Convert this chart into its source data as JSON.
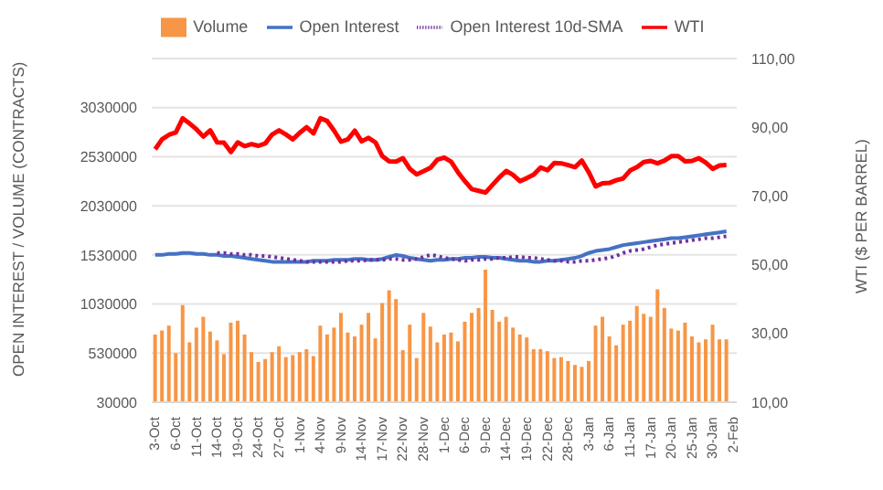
{
  "chart_data": {
    "type": "bar",
    "ylabel": "OPEN INTEREST / VOLUME (CONTRACTS)",
    "y2label": "WTI ($ PER BARREL)",
    "categories": [
      "3-Oct",
      null,
      null,
      "6-Oct",
      null,
      null,
      "11-Oct",
      null,
      null,
      "14-Oct",
      null,
      null,
      "19-Oct",
      null,
      null,
      "24-Oct",
      null,
      null,
      "27-Oct",
      null,
      null,
      "1-Nov",
      null,
      null,
      "4-Nov",
      null,
      null,
      "9-Nov",
      null,
      null,
      "14-Nov",
      null,
      null,
      "17-Nov",
      null,
      null,
      "22-Nov",
      null,
      null,
      "28-Nov",
      null,
      null,
      "1-Dec",
      null,
      null,
      "6-Dec",
      null,
      null,
      "9-Dec",
      null,
      null,
      "14-Dec",
      null,
      null,
      "19-Dec",
      null,
      null,
      "22-Dec",
      null,
      null,
      "28-Dec",
      null,
      null,
      "3-Jan",
      null,
      null,
      "6-Jan",
      null,
      null,
      "11-Jan",
      null,
      null,
      "17-Jan",
      null,
      null,
      "20-Jan",
      null,
      null,
      "25-Jan",
      null,
      null,
      "30-Jan",
      null,
      null,
      "2-Feb"
    ],
    "series": [
      {
        "name": "Volume",
        "color": "#f79646",
        "values": [
          720000,
          760000,
          810000,
          530000,
          1020000,
          640000,
          790000,
          900000,
          750000,
          660000,
          520000,
          840000,
          860000,
          720000,
          540000,
          440000,
          470000,
          540000,
          600000,
          490000,
          510000,
          540000,
          570000,
          500000,
          810000,
          720000,
          790000,
          940000,
          740000,
          700000,
          820000,
          940000,
          680000,
          1040000,
          1170000,
          1080000,
          560000,
          820000,
          480000,
          940000,
          800000,
          640000,
          720000,
          740000,
          650000,
          850000,
          940000,
          990000,
          1380000,
          970000,
          850000,
          900000,
          790000,
          720000,
          690000,
          570000,
          570000,
          550000,
          480000,
          490000,
          450000,
          410000,
          390000,
          450000,
          810000,
          900000,
          700000,
          610000,
          820000,
          860000,
          1010000,
          930000,
          900000,
          1180000,
          990000,
          780000,
          760000,
          840000,
          700000,
          640000,
          670000,
          820000,
          670000,
          670000,
          null
        ]
      },
      {
        "name": "Open Interest",
        "type": "line",
        "color": "#4472c4",
        "line_style": "solid",
        "values": [
          1530000,
          1530000,
          1540000,
          1540000,
          1550000,
          1550000,
          1540000,
          1540000,
          1530000,
          1530000,
          1520000,
          1520000,
          1510000,
          1500000,
          1490000,
          1480000,
          1470000,
          1460000,
          1460000,
          1460000,
          1460000,
          1460000,
          1460000,
          1470000,
          1470000,
          1470000,
          1480000,
          1480000,
          1480000,
          1490000,
          1490000,
          1480000,
          1480000,
          1490000,
          1510000,
          1530000,
          1520000,
          1500000,
          1490000,
          1480000,
          1470000,
          1480000,
          1480000,
          1490000,
          1490000,
          1500000,
          1500000,
          1510000,
          1510000,
          1500000,
          1500000,
          1490000,
          1480000,
          1470000,
          1470000,
          1460000,
          1460000,
          1470000,
          1470000,
          1480000,
          1490000,
          1500000,
          1520000,
          1550000,
          1570000,
          1580000,
          1590000,
          1610000,
          1630000,
          1640000,
          1650000,
          1660000,
          1670000,
          1680000,
          1690000,
          1700000,
          1700000,
          1710000,
          1720000,
          1730000,
          1740000,
          1750000,
          1760000,
          1770000,
          null
        ]
      },
      {
        "name": "Open Interest 10d-SMA",
        "type": "line",
        "color": "#7030a0",
        "line_style": "dotted",
        "values": [
          null,
          null,
          null,
          null,
          null,
          null,
          null,
          null,
          null,
          1550000,
          1550000,
          1540000,
          1540000,
          1530000,
          1530000,
          1520000,
          1520000,
          1510000,
          1500000,
          1490000,
          1480000,
          1470000,
          1460000,
          1460000,
          1460000,
          1460000,
          1460000,
          1460000,
          1470000,
          1470000,
          1470000,
          1480000,
          1480000,
          1480000,
          1490000,
          1490000,
          1480000,
          1480000,
          1490000,
          1510000,
          1530000,
          1520000,
          1500000,
          1490000,
          1480000,
          1470000,
          1480000,
          1480000,
          1490000,
          1490000,
          1500000,
          1500000,
          1510000,
          1510000,
          1500000,
          1500000,
          1490000,
          1480000,
          1470000,
          1470000,
          1460000,
          1460000,
          1470000,
          1470000,
          1480000,
          1490000,
          1500000,
          1520000,
          1550000,
          1570000,
          1580000,
          1590000,
          1610000,
          1630000,
          1640000,
          1650000,
          1660000,
          1670000,
          1680000,
          1690000,
          1700000,
          1700000,
          1710000,
          1720000,
          null
        ]
      },
      {
        "name": "WTI",
        "type": "line",
        "axis": "y2",
        "color": "#ff0000",
        "line_style": "solid",
        "values": [
          83.6,
          86.5,
          87.8,
          88.5,
          92.6,
          91.1,
          89.4,
          87.3,
          89.1,
          85.6,
          85.5,
          82.8,
          85.6,
          84.5,
          85.1,
          84.6,
          85.3,
          87.9,
          89.1,
          87.9,
          86.5,
          88.4,
          90.0,
          88.2,
          92.6,
          91.8,
          89.0,
          85.8,
          86.5,
          89.0,
          85.9,
          86.9,
          85.6,
          81.6,
          80.1,
          80.0,
          81.0,
          77.9,
          76.3,
          77.2,
          78.2,
          80.6,
          81.2,
          80.0,
          76.9,
          74.3,
          72.0,
          71.5,
          71.0,
          73.2,
          75.4,
          77.3,
          76.1,
          74.3,
          75.2,
          76.2,
          78.3,
          77.5,
          79.6,
          79.5,
          79.0,
          78.4,
          80.3,
          76.9,
          72.8,
          73.7,
          73.8,
          74.6,
          75.1,
          77.4,
          78.4,
          79.9,
          80.2,
          79.5,
          80.3,
          81.6,
          81.6,
          80.1,
          80.2,
          81.0,
          79.7,
          77.9,
          78.9,
          79.0,
          null
        ]
      }
    ],
    "ylim": [
      30000,
      3530000
    ],
    "yticks": [
      30000,
      530000,
      1030000,
      1530000,
      2030000,
      2530000,
      3030000,
      {
        "value": 3530000,
        "label": null
      }
    ],
    "y2lim": [
      10,
      110
    ],
    "y2ticks": [
      {
        "value": 10,
        "label": "10,00"
      },
      {
        "value": 30,
        "label": "30,00"
      },
      {
        "value": 50,
        "label": "50,00"
      },
      {
        "value": 70,
        "label": "70,00"
      },
      {
        "value": 90,
        "label": "90,00"
      },
      {
        "value": 110,
        "label": "110,00"
      }
    ],
    "grid": "y",
    "legend": "top",
    "marker": "none"
  }
}
